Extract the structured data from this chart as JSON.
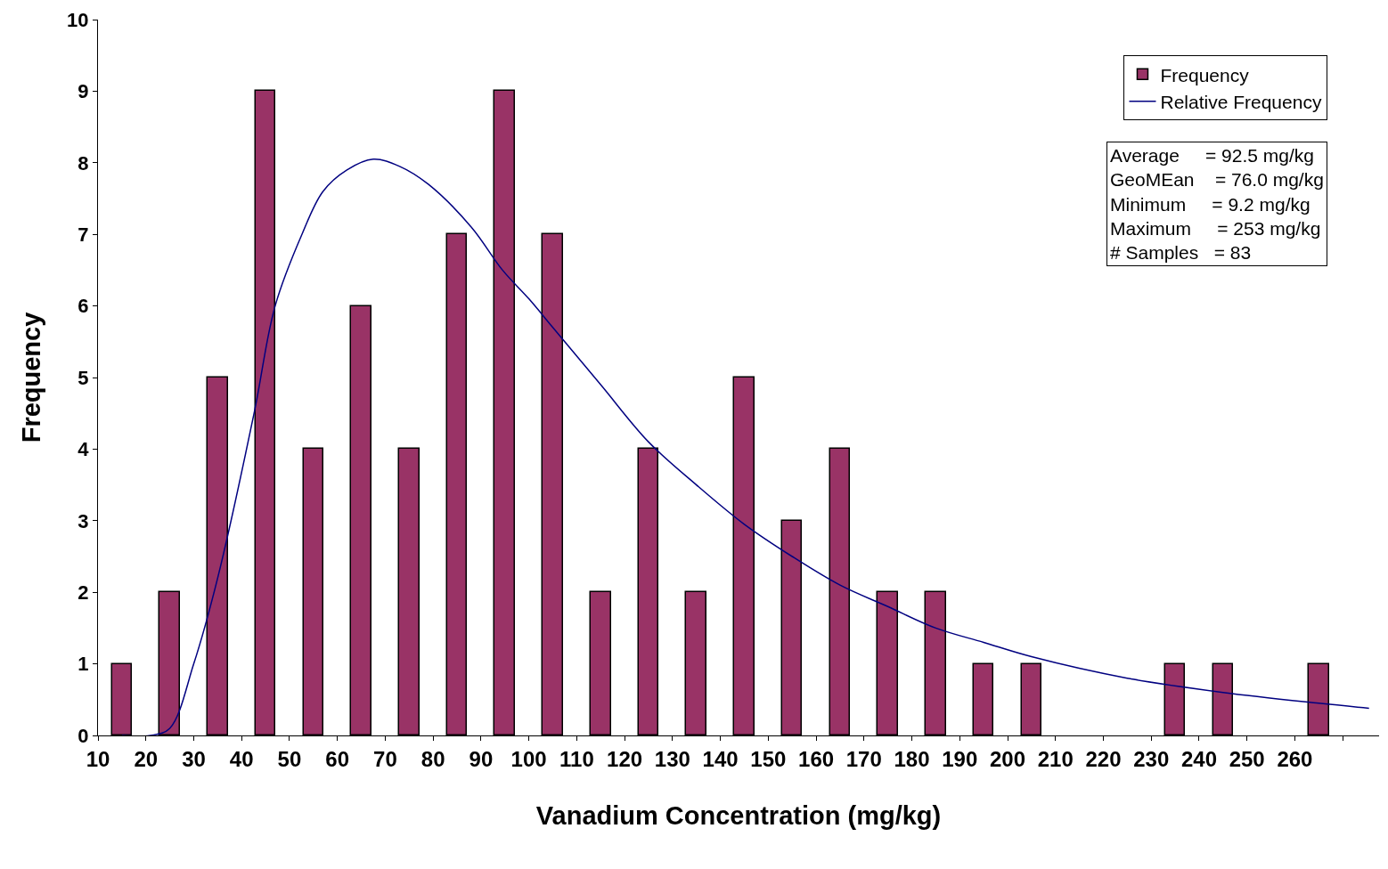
{
  "chart_data": {
    "type": "histogram",
    "xlabel": "Vanadium Concentration (mg/kg)",
    "ylabel": "Frequency",
    "bins": [
      10,
      20,
      30,
      40,
      50,
      60,
      70,
      80,
      90,
      100,
      110,
      120,
      130,
      140,
      150,
      160,
      170,
      180,
      190,
      200,
      210,
      220,
      230,
      240,
      250,
      260,
      270
    ],
    "series": [
      {
        "name": "Frequency",
        "color": "#993366",
        "values": [
          1,
          2,
          5,
          9,
          4,
          6,
          4,
          7,
          9,
          7,
          2,
          4,
          2,
          5,
          3,
          4,
          2,
          2,
          1,
          1,
          0,
          0,
          1,
          1,
          0,
          1
        ]
      },
      {
        "name": "Relative Frequency",
        "type": "line",
        "color": "#000080",
        "x": [
          15,
          21,
          25,
          30,
          35,
          42.6,
          47,
          52.6,
          57,
          62,
          67.5,
          73,
          79,
          88,
          94.5,
          100,
          105,
          115,
          125,
          135,
          145,
          155,
          165,
          175,
          185,
          195,
          205,
          225,
          245,
          265,
          275.5
        ],
        "values": [
          0,
          0,
          0.1,
          1.0,
          2.2,
          4.5,
          6.0,
          7.0,
          7.6,
          7.9,
          8.05,
          7.95,
          7.7,
          7.1,
          6.5,
          6.1,
          5.7,
          4.9,
          4.1,
          3.5,
          2.95,
          2.5,
          2.1,
          1.8,
          1.5,
          1.3,
          1.1,
          0.8,
          0.6,
          0.45,
          0.38
        ]
      }
    ],
    "xlim": [
      10,
      277.6
    ],
    "xticks": [
      10,
      20,
      30,
      40,
      50,
      60,
      70,
      80,
      90,
      100,
      110,
      120,
      130,
      140,
      150,
      160,
      170,
      180,
      190,
      200,
      210,
      220,
      230,
      240,
      250,
      260,
      {
        "value": 270,
        "label": null
      }
    ],
    "ylim": [
      0,
      10
    ],
    "yticks": [
      0,
      1,
      2,
      3,
      4,
      5,
      6,
      7,
      8,
      9,
      10
    ],
    "legend": "top right",
    "annotations": [
      "Average     = 92.5 mg/kg\nGeoMEan    = 76.0 mg/kg\nMinimum     = 9.2 mg/kg\nMaximum     = 253 mg/kg\n# Samples   = 83"
    ]
  }
}
